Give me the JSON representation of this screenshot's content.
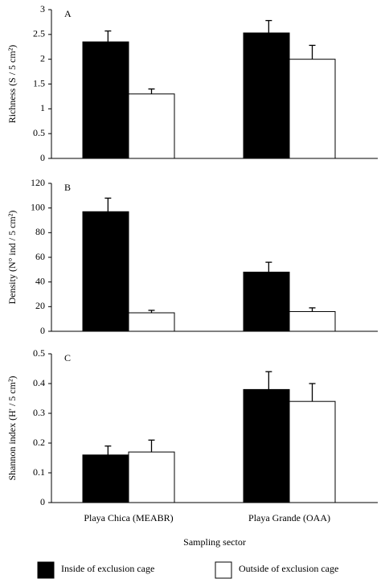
{
  "chart_data": [
    {
      "type": "bar",
      "label": "A",
      "y_label": "Richness (S / 5 cm²)",
      "ylim": [
        0,
        3
      ],
      "yticks": [
        0,
        0.5,
        1,
        1.5,
        2,
        2.5,
        3
      ],
      "series": [
        {
          "name": "Inside of exclusion cage",
          "color": "#000000",
          "values": [
            2.35,
            2.53
          ],
          "errors": [
            0.22,
            0.25
          ]
        },
        {
          "name": "Outside of exclusion cage",
          "color": "#ffffff",
          "values": [
            1.3,
            2.0
          ],
          "errors": [
            0.1,
            0.28
          ]
        }
      ]
    },
    {
      "type": "bar",
      "label": "B",
      "y_label": "Density (N° ind / 5 cm²)",
      "ylim": [
        0,
        120
      ],
      "yticks": [
        0,
        20,
        40,
        60,
        80,
        100,
        120
      ],
      "series": [
        {
          "color": "#000000",
          "values": [
            97,
            48
          ],
          "errors": [
            11,
            8
          ]
        },
        {
          "color": "#ffffff",
          "values": [
            15,
            16
          ],
          "errors": [
            2,
            3
          ]
        }
      ]
    },
    {
      "type": "bar",
      "label": "C",
      "y_label": "Shannon index (H' / 5 cm²)",
      "ylim": [
        0,
        0.5
      ],
      "yticks": [
        0,
        0.1,
        0.2,
        0.3,
        0.4,
        0.5
      ],
      "categories": [
        "Playa Chica (MEABR)",
        "Playa Grande (OAA)"
      ],
      "x_label": "Sampling sector",
      "series": [
        {
          "color": "#000000",
          "values": [
            0.16,
            0.38
          ],
          "errors": [
            0.03,
            0.06
          ]
        },
        {
          "color": "#ffffff",
          "values": [
            0.17,
            0.34
          ],
          "errors": [
            0.04,
            0.06
          ]
        }
      ]
    }
  ]
}
